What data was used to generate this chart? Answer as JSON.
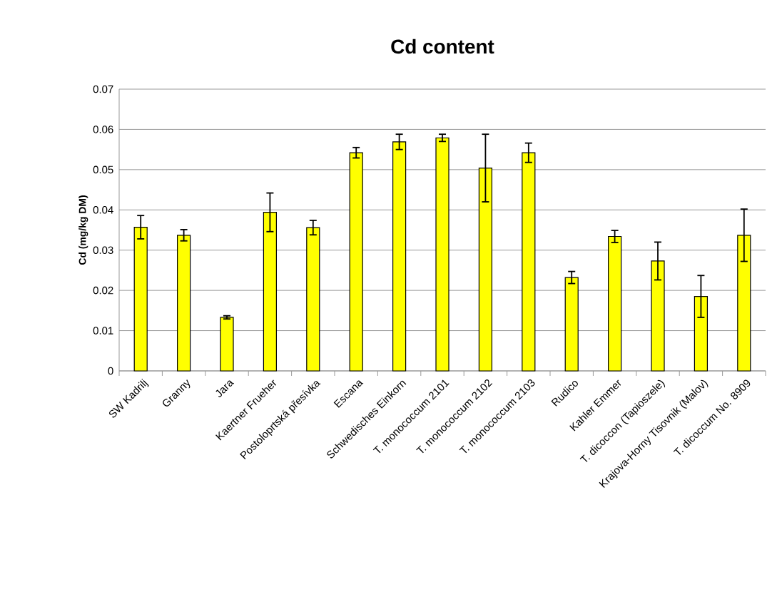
{
  "chart_data": {
    "type": "bar",
    "title": "Cd content",
    "ylabel": "Cd (mg/kg DM)",
    "categories": [
      "SW Kadrilj",
      "Granny",
      "Jara",
      "Kaertner Frueher",
      "Postoloprtská přesívka",
      "Escana",
      "Schwedisches Einkorn",
      "T. monococcum 2101",
      "T. monococcum 2102",
      "T. monococcum 2103",
      "Rudico",
      "Kahler Emmer",
      "T. dicoccon (Tapioszele)",
      "Krajova-Horny Tisovnik (Malov)",
      "T. dicoccum No. 8909"
    ],
    "values": [
      0.0357,
      0.0337,
      0.0133,
      0.0394,
      0.0356,
      0.0542,
      0.0569,
      0.0579,
      0.0504,
      0.0542,
      0.0232,
      0.0334,
      0.0273,
      0.0185,
      0.0337
    ],
    "errors": [
      0.0029,
      0.0014,
      0.0004,
      0.0048,
      0.0018,
      0.0013,
      0.0019,
      0.0009,
      0.0084,
      0.0024,
      0.0015,
      0.0015,
      0.0047,
      0.0052,
      0.0065
    ],
    "color": "#ffff00",
    "ylim": [
      0,
      0.07
    ],
    "yticks": [
      0,
      0.01,
      0.02,
      0.03,
      0.04,
      0.05,
      0.06,
      0.07
    ],
    "grid": "y"
  }
}
